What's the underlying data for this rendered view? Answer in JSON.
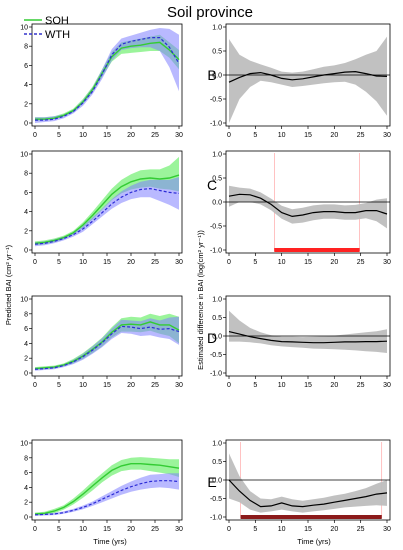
{
  "figure": {
    "title": "Soil province",
    "left_ylabel": "Predicted BAI (cm² yr⁻¹)",
    "right_ylabel": "Estimated difference in BAI (log(cm² yr⁻¹))",
    "xlabel": "Time (yrs)"
  },
  "legend": {
    "placement": "top-left",
    "items": [
      {
        "label": "SOH",
        "color": "#33cc33",
        "style": "solid"
      },
      {
        "label": "WTH",
        "color": "#3333cc",
        "style": "dashed"
      }
    ]
  },
  "colors": {
    "soh_line": "#33cc33",
    "soh_band": "#66ee66",
    "wth_line": "#2b2bd6",
    "wth_band": "#8080ff",
    "diff_band": "#bebebe",
    "diff_line": "#000000",
    "signif": "#ff2222",
    "signif_E": "#8b1a1a"
  },
  "chart_data": [
    {
      "type": "line",
      "panel": "A",
      "xlim": [
        0,
        30
      ],
      "ylim": [
        0,
        10
      ],
      "xticks": [
        0,
        5,
        10,
        15,
        20,
        25,
        30
      ],
      "yticks": [
        0,
        2,
        4,
        6,
        8,
        10
      ],
      "x": [
        0,
        2,
        4,
        6,
        8,
        10,
        12,
        14,
        16,
        18,
        20,
        22,
        24,
        26,
        28,
        30
      ],
      "series": [
        {
          "name": "SOH",
          "values": [
            0.4,
            0.4,
            0.5,
            0.8,
            1.3,
            2.2,
            3.5,
            5.2,
            6.9,
            7.8,
            8.0,
            8.1,
            8.3,
            8.4,
            7.6,
            6.6
          ],
          "lower": [
            0.2,
            0.3,
            0.4,
            0.7,
            1.1,
            2.0,
            3.2,
            4.8,
            6.4,
            7.2,
            7.3,
            7.4,
            7.5,
            7.5,
            6.8,
            5.6
          ],
          "upper": [
            0.6,
            0.6,
            0.7,
            1.0,
            1.5,
            2.5,
            3.8,
            5.6,
            7.4,
            8.4,
            8.6,
            8.8,
            9.0,
            9.2,
            8.4,
            7.6
          ]
        },
        {
          "name": "WTH",
          "values": [
            0.3,
            0.3,
            0.4,
            0.7,
            1.2,
            2.1,
            3.3,
            5.1,
            7.1,
            8.2,
            8.5,
            8.7,
            8.9,
            8.9,
            7.9,
            6.2
          ],
          "lower": [
            0.0,
            0.1,
            0.2,
            0.5,
            1.0,
            1.8,
            3.0,
            4.6,
            6.5,
            7.6,
            7.8,
            7.9,
            7.9,
            7.5,
            5.8,
            3.3
          ],
          "upper": [
            0.6,
            0.6,
            0.7,
            0.9,
            1.4,
            2.4,
            3.7,
            5.6,
            7.7,
            8.8,
            9.1,
            9.4,
            9.7,
            9.9,
            9.8,
            9.2
          ]
        }
      ]
    },
    {
      "type": "line",
      "panel": "B",
      "xlim": [
        0,
        30
      ],
      "ylim": [
        -1,
        1
      ],
      "xticks": [
        0,
        5,
        10,
        15,
        20,
        25,
        30
      ],
      "yticks": [
        -1.0,
        -0.5,
        0.0,
        0.5,
        1.0
      ],
      "x": [
        0,
        2,
        4,
        6,
        8,
        10,
        12,
        14,
        16,
        18,
        20,
        22,
        24,
        26,
        28,
        30
      ],
      "values": [
        -0.15,
        -0.05,
        0.03,
        0.05,
        0.0,
        -0.07,
        -0.1,
        -0.08,
        -0.04,
        0.0,
        0.03,
        0.06,
        0.07,
        0.03,
        -0.02,
        -0.03
      ],
      "lower": [
        -1.0,
        -0.5,
        -0.25,
        -0.12,
        -0.15,
        -0.2,
        -0.25,
        -0.23,
        -0.2,
        -0.17,
        -0.15,
        -0.14,
        -0.2,
        -0.35,
        -0.55,
        -0.85
      ],
      "upper": [
        0.75,
        0.42,
        0.3,
        0.22,
        0.15,
        0.07,
        0.05,
        0.07,
        0.12,
        0.17,
        0.2,
        0.25,
        0.33,
        0.42,
        0.5,
        0.8
      ],
      "hline": 0,
      "significant_ranges": []
    },
    {
      "type": "line",
      "panel": "C",
      "xlim": [
        0,
        30
      ],
      "ylim": [
        0,
        10
      ],
      "xticks": [
        0,
        5,
        10,
        15,
        20,
        25,
        30
      ],
      "yticks": [
        0,
        2,
        4,
        6,
        8,
        10
      ],
      "x": [
        0,
        2,
        4,
        6,
        8,
        10,
        12,
        14,
        16,
        18,
        20,
        22,
        24,
        26,
        28,
        30
      ],
      "series": [
        {
          "name": "SOH",
          "values": [
            0.7,
            0.8,
            1.0,
            1.3,
            1.8,
            2.6,
            3.6,
            4.7,
            5.8,
            6.6,
            7.1,
            7.4,
            7.5,
            7.4,
            7.5,
            7.8
          ],
          "lower": [
            0.5,
            0.6,
            0.8,
            1.1,
            1.6,
            2.3,
            3.2,
            4.2,
            5.2,
            5.9,
            6.3,
            6.5,
            6.6,
            6.4,
            6.3,
            6.1
          ],
          "upper": [
            0.9,
            1.0,
            1.2,
            1.5,
            2.0,
            2.9,
            4.0,
            5.2,
            6.4,
            7.3,
            7.9,
            8.3,
            8.4,
            8.4,
            8.8,
            9.7
          ]
        },
        {
          "name": "WTH",
          "values": [
            0.6,
            0.7,
            0.9,
            1.2,
            1.6,
            2.2,
            3.0,
            3.9,
            4.8,
            5.5,
            6.0,
            6.3,
            6.4,
            6.2,
            6.0,
            5.9
          ],
          "lower": [
            0.4,
            0.5,
            0.7,
            1.0,
            1.4,
            1.9,
            2.7,
            3.5,
            4.3,
            4.9,
            5.3,
            5.5,
            5.5,
            5.1,
            4.7,
            4.2
          ],
          "upper": [
            0.8,
            0.9,
            1.1,
            1.4,
            1.8,
            2.5,
            3.4,
            4.3,
            5.3,
            6.1,
            6.7,
            7.1,
            7.3,
            7.3,
            7.3,
            7.6
          ]
        }
      ]
    },
    {
      "type": "line",
      "panel": "C-diff",
      "xlim": [
        0,
        30
      ],
      "ylim": [
        -1,
        1
      ],
      "xticks": [
        0,
        5,
        10,
        15,
        20,
        25,
        30
      ],
      "yticks": [
        -1.0,
        -0.5,
        0.0,
        0.5,
        1.0
      ],
      "x": [
        0,
        2,
        4,
        6,
        8,
        10,
        12,
        14,
        16,
        18,
        20,
        22,
        24,
        26,
        28,
        30
      ],
      "values": [
        0.12,
        0.16,
        0.15,
        0.08,
        -0.05,
        -0.22,
        -0.3,
        -0.27,
        -0.22,
        -0.2,
        -0.2,
        -0.22,
        -0.22,
        -0.18,
        -0.18,
        -0.25
      ],
      "lower": [
        -0.1,
        0.0,
        0.0,
        -0.05,
        -0.17,
        -0.35,
        -0.45,
        -0.43,
        -0.38,
        -0.35,
        -0.35,
        -0.37,
        -0.37,
        -0.34,
        -0.4,
        -0.55
      ],
      "upper": [
        0.34,
        0.3,
        0.28,
        0.2,
        0.07,
        -0.08,
        -0.15,
        -0.12,
        -0.07,
        -0.05,
        -0.05,
        -0.07,
        -0.06,
        -0.02,
        0.05,
        0.08
      ],
      "hline": 0,
      "significant_ranges": [
        [
          8.6,
          24.8
        ]
      ]
    },
    {
      "type": "line",
      "panel": "E-top",
      "xlim": [
        0,
        30
      ],
      "ylim": [
        0,
        10
      ],
      "xticks": [
        0,
        5,
        10,
        15,
        20,
        25,
        30
      ],
      "yticks": [
        0,
        2,
        4,
        6,
        8,
        10
      ],
      "x": [
        0,
        2,
        4,
        6,
        8,
        10,
        12,
        14,
        16,
        18,
        20,
        22,
        24,
        26,
        28,
        30
      ],
      "series": [
        {
          "name": "SOH",
          "values": [
            0.6,
            0.7,
            0.8,
            1.1,
            1.6,
            2.3,
            3.2,
            4.2,
            5.5,
            6.5,
            6.6,
            6.5,
            6.9,
            6.5,
            6.5,
            5.8
          ],
          "lower": [
            0.4,
            0.5,
            0.6,
            0.9,
            1.3,
            1.9,
            2.7,
            3.6,
            4.8,
            5.6,
            5.6,
            5.5,
            5.7,
            5.3,
            5.0,
            4.0
          ],
          "upper": [
            0.8,
            0.9,
            1.0,
            1.3,
            1.9,
            2.7,
            3.7,
            4.8,
            6.2,
            7.4,
            7.6,
            7.5,
            8.0,
            7.7,
            8.0,
            7.6
          ]
        },
        {
          "name": "WTH",
          "values": [
            0.5,
            0.6,
            0.7,
            1.0,
            1.5,
            2.2,
            3.1,
            4.1,
            5.3,
            6.3,
            6.2,
            6.0,
            6.2,
            5.9,
            6.0,
            5.6
          ],
          "lower": [
            0.3,
            0.4,
            0.5,
            0.8,
            1.2,
            1.8,
            2.6,
            3.5,
            4.6,
            5.4,
            5.3,
            5.0,
            5.1,
            4.8,
            4.6,
            3.8
          ],
          "upper": [
            0.7,
            0.8,
            0.9,
            1.2,
            1.8,
            2.6,
            3.6,
            4.7,
            6.0,
            7.2,
            7.1,
            7.0,
            7.4,
            7.1,
            7.5,
            7.6
          ]
        }
      ]
    },
    {
      "type": "line",
      "panel": "D",
      "xlim": [
        0,
        30
      ],
      "ylim": [
        -1,
        1
      ],
      "xticks": [
        0,
        5,
        10,
        15,
        20,
        25,
        30
      ],
      "yticks": [
        -1.0,
        -0.5,
        0.0,
        0.5,
        1.0
      ],
      "x": [
        0,
        2,
        4,
        6,
        8,
        10,
        12,
        14,
        16,
        18,
        20,
        22,
        24,
        26,
        28,
        30
      ],
      "values": [
        0.12,
        0.05,
        -0.02,
        -0.07,
        -0.12,
        -0.15,
        -0.16,
        -0.17,
        -0.18,
        -0.18,
        -0.17,
        -0.16,
        -0.16,
        -0.15,
        -0.15,
        -0.14
      ],
      "lower": [
        -0.15,
        -0.15,
        -0.17,
        -0.2,
        -0.25,
        -0.28,
        -0.3,
        -0.32,
        -0.34,
        -0.35,
        -0.36,
        -0.37,
        -0.39,
        -0.41,
        -0.43,
        -0.46
      ],
      "upper": [
        0.68,
        0.42,
        0.22,
        0.1,
        0.02,
        -0.02,
        -0.02,
        -0.03,
        -0.02,
        -0.01,
        0.01,
        0.04,
        0.07,
        0.1,
        0.13,
        0.18
      ],
      "hline": 0,
      "significant_ranges": []
    },
    {
      "type": "line",
      "panel": "E-bottom",
      "xlim": [
        0,
        30
      ],
      "ylim": [
        0,
        10
      ],
      "xticks": [
        0,
        5,
        10,
        15,
        20,
        25,
        30
      ],
      "yticks": [
        0,
        2,
        4,
        6,
        8,
        10
      ],
      "x": [
        0,
        2,
        4,
        6,
        8,
        10,
        12,
        14,
        16,
        18,
        20,
        22,
        24,
        26,
        28,
        30
      ],
      "series": [
        {
          "name": "SOH",
          "values": [
            0.4,
            0.5,
            0.8,
            1.3,
            2.1,
            3.1,
            4.2,
            5.3,
            6.3,
            6.9,
            7.2,
            7.2,
            7.1,
            7.0,
            6.8,
            6.6
          ],
          "lower": [
            0.2,
            0.3,
            0.5,
            1.0,
            1.7,
            2.6,
            3.6,
            4.7,
            5.6,
            6.2,
            6.4,
            6.4,
            6.2,
            6.0,
            5.8,
            5.4
          ],
          "upper": [
            0.6,
            0.7,
            1.1,
            1.6,
            2.5,
            3.6,
            4.8,
            5.9,
            7.0,
            7.7,
            8.0,
            8.1,
            8.0,
            7.9,
            7.8,
            7.8
          ]
        },
        {
          "name": "WTH",
          "values": [
            0.3,
            0.35,
            0.4,
            0.6,
            0.9,
            1.3,
            1.8,
            2.4,
            3.0,
            3.6,
            4.1,
            4.5,
            4.8,
            4.9,
            4.9,
            4.8
          ],
          "lower": [
            0.15,
            0.2,
            0.25,
            0.45,
            0.7,
            1.05,
            1.5,
            2.0,
            2.5,
            3.0,
            3.4,
            3.7,
            3.9,
            4.0,
            3.9,
            3.7
          ],
          "upper": [
            0.45,
            0.5,
            0.55,
            0.75,
            1.1,
            1.55,
            2.1,
            2.8,
            3.5,
            4.2,
            4.8,
            5.3,
            5.7,
            5.8,
            5.9,
            5.9
          ]
        }
      ]
    },
    {
      "type": "line",
      "panel": "E",
      "xlim": [
        0,
        30
      ],
      "ylim": [
        -1,
        1
      ],
      "xticks": [
        0,
        5,
        10,
        15,
        20,
        25,
        30
      ],
      "yticks": [
        -1.0,
        -0.5,
        0.0,
        0.5,
        1.0
      ],
      "x": [
        0,
        2,
        4,
        6,
        8,
        10,
        12,
        14,
        16,
        18,
        20,
        22,
        24,
        26,
        28,
        30
      ],
      "values": [
        0.0,
        -0.3,
        -0.55,
        -0.72,
        -0.7,
        -0.62,
        -0.7,
        -0.72,
        -0.68,
        -0.65,
        -0.6,
        -0.55,
        -0.5,
        -0.45,
        -0.38,
        -0.35
      ],
      "lower": [
        -0.5,
        -0.6,
        -0.8,
        -0.88,
        -0.85,
        -0.8,
        -0.85,
        -0.88,
        -0.85,
        -0.82,
        -0.78,
        -0.74,
        -0.72,
        -0.7,
        -0.68,
        -0.7
      ],
      "upper": [
        0.72,
        0.1,
        -0.3,
        -0.5,
        -0.52,
        -0.45,
        -0.52,
        -0.56,
        -0.52,
        -0.48,
        -0.42,
        -0.37,
        -0.3,
        -0.22,
        -0.1,
        0.0
      ],
      "hline": 0,
      "significant_ranges": [
        [
          2.2,
          29.0
        ]
      ]
    }
  ],
  "panel_labels": [
    "B",
    "C",
    "D",
    "E"
  ]
}
